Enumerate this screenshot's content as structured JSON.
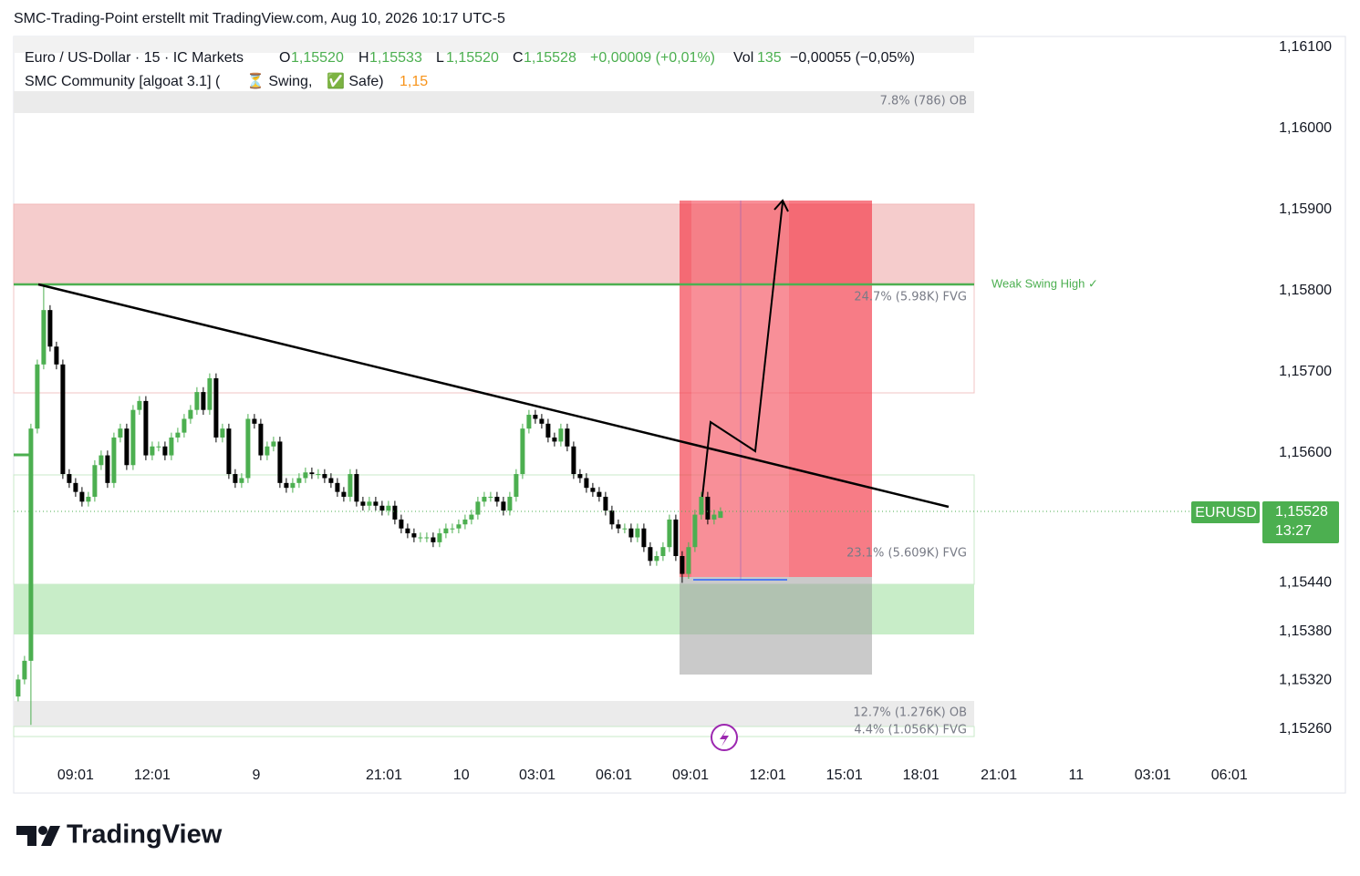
{
  "header": "SMC-Trading-Point erstellt mit TradingView.com, Aug 10, 2026 10:17 UTC-5",
  "logo": "TradingView",
  "chart_data": {
    "type": "candlestick",
    "legend": {
      "symbol": "Euro / US-Dollar · 15 · IC Markets",
      "o_label": "O",
      "o": "1,15520",
      "h_label": "H",
      "h": "1,15533",
      "l_label": "L",
      "l": "1,15520",
      "c_label": "C",
      "c": "1,15528",
      "change": "+0,00009 (+0,01%)",
      "vol_label": "Vol",
      "vol": "135",
      "change2": "−0,00055 (−0,05%)"
    },
    "indicator": {
      "name": "SMC Community [algoat 3.1] (",
      "swing": "⏳ Swing,",
      "safe": "✅ Safe)",
      "value": "1,15"
    },
    "zone_labels": [
      "7.8% (786) OB",
      "24.7% (5.98K) FVG",
      "23.1% (5.609K) FVG",
      "12.7% (1.276K) OB",
      "4.4% (1.056K) FVG"
    ],
    "swing_label": "Weak Swing High ✓",
    "price_tag": {
      "symbol": "EURUSD",
      "price": "1,15528",
      "countdown": "13:27"
    },
    "up_color": "#4caf50",
    "down_color": "#000000",
    "open": [
      1.153,
      1.15321,
      1.15344,
      1.1563,
      1.15709,
      1.15776,
      1.15731,
      1.15709,
      1.15574,
      1.15563,
      1.15552,
      1.1554,
      1.15546,
      1.15585,
      1.15597,
      1.15563,
      1.15619,
      1.1563,
      1.15585,
      1.15653,
      1.15664,
      1.15597,
      1.15608,
      1.15608,
      1.15597,
      1.15619,
      1.15625,
      1.15642,
      1.15653,
      1.15675,
      1.15653,
      1.15692,
      1.15619,
      1.1563,
      1.15574,
      1.15563,
      1.15569,
      1.15642,
      1.15636,
      1.15597,
      1.15608,
      1.15614,
      1.15563,
      1.15557,
      1.15563,
      1.15569,
      1.15576,
      1.15574,
      1.15574,
      1.15569,
      1.15563,
      1.15552,
      1.15546,
      1.15574,
      1.1554,
      1.15535,
      1.1554,
      1.15535,
      1.15529,
      1.15535,
      1.15518,
      1.15507,
      1.15501,
      1.15496,
      1.15496,
      1.15496,
      1.1549,
      1.15501,
      1.15507,
      1.15507,
      1.15512,
      1.15518,
      1.15524,
      1.1554,
      1.15546,
      1.15546,
      1.1554,
      1.15529,
      1.15546,
      1.15574,
      1.1563,
      1.15647,
      1.15642,
      1.15636,
      1.15619,
      1.15614,
      1.1563,
      1.15608,
      1.15574,
      1.15569,
      1.15557,
      1.15552,
      1.15546,
      1.15529,
      1.15512,
      1.15507,
      1.15507,
      1.15496,
      1.15507,
      1.15484,
      1.15467,
      1.15473,
      1.15484,
      1.15518,
      1.15473,
      1.15451,
      1.15484,
      1.15524,
      1.15546,
      1.15518,
      1.1552
    ],
    "high": [
      1.15327,
      1.1535,
      1.15636,
      1.15715,
      1.15808,
      1.15782,
      1.15737,
      1.15715,
      1.1558,
      1.15569,
      1.15558,
      1.15552,
      1.15591,
      1.15603,
      1.15603,
      1.15625,
      1.15636,
      1.15636,
      1.15659,
      1.1567,
      1.1567,
      1.15614,
      1.15614,
      1.15614,
      1.15625,
      1.15631,
      1.15648,
      1.15659,
      1.15681,
      1.15681,
      1.15698,
      1.15698,
      1.15636,
      1.15636,
      1.1558,
      1.15575,
      1.15648,
      1.15648,
      1.15642,
      1.15614,
      1.1562,
      1.1562,
      1.15569,
      1.15569,
      1.15575,
      1.15582,
      1.15582,
      1.1558,
      1.1558,
      1.15575,
      1.15569,
      1.15558,
      1.1558,
      1.1558,
      1.15546,
      1.15546,
      1.15546,
      1.15541,
      1.15541,
      1.15541,
      1.15524,
      1.15513,
      1.15507,
      1.15502,
      1.15502,
      1.15502,
      1.15507,
      1.15513,
      1.15513,
      1.15518,
      1.15524,
      1.1553,
      1.15546,
      1.15552,
      1.15552,
      1.15552,
      1.15546,
      1.15552,
      1.1558,
      1.15636,
      1.15653,
      1.15653,
      1.15648,
      1.15642,
      1.15625,
      1.15636,
      1.15636,
      1.15614,
      1.1558,
      1.15575,
      1.15563,
      1.15558,
      1.15552,
      1.15535,
      1.15518,
      1.15513,
      1.15513,
      1.15513,
      1.15513,
      1.1549,
      1.15479,
      1.1549,
      1.15524,
      1.15524,
      1.15479,
      1.1549,
      1.1553,
      1.15552,
      1.15552,
      1.1553,
      1.15533
    ],
    "low": [
      1.15294,
      1.15315,
      1.15265,
      1.15624,
      1.15703,
      1.15725,
      1.15703,
      1.15568,
      1.15557,
      1.15546,
      1.15534,
      1.15534,
      1.1554,
      1.15579,
      1.15557,
      1.15557,
      1.15613,
      1.15579,
      1.15579,
      1.15647,
      1.15591,
      1.15591,
      1.15602,
      1.15591,
      1.15591,
      1.15613,
      1.15619,
      1.15636,
      1.15647,
      1.15647,
      1.15647,
      1.15613,
      1.15613,
      1.15568,
      1.15557,
      1.15557,
      1.15563,
      1.1563,
      1.15591,
      1.15591,
      1.15602,
      1.15557,
      1.15551,
      1.15551,
      1.15557,
      1.15563,
      1.15568,
      1.15568,
      1.15563,
      1.15557,
      1.15546,
      1.1554,
      1.1554,
      1.15534,
      1.15529,
      1.15529,
      1.15529,
      1.15523,
      1.15523,
      1.15512,
      1.15501,
      1.15495,
      1.1549,
      1.1549,
      1.1549,
      1.15484,
      1.15484,
      1.15495,
      1.15501,
      1.15501,
      1.15506,
      1.15512,
      1.15518,
      1.15534,
      1.1554,
      1.15534,
      1.15523,
      1.15523,
      1.1554,
      1.15568,
      1.15624,
      1.15636,
      1.1563,
      1.15613,
      1.15608,
      1.15608,
      1.15602,
      1.15568,
      1.15563,
      1.15551,
      1.15546,
      1.1554,
      1.15523,
      1.15506,
      1.15501,
      1.15501,
      1.1549,
      1.1549,
      1.15478,
      1.15461,
      1.15461,
      1.15467,
      1.15478,
      1.15467,
      1.1544,
      1.15445,
      1.15478,
      1.15518,
      1.15512,
      1.15512,
      1.1552
    ],
    "close": [
      1.15321,
      1.15344,
      1.1563,
      1.15709,
      1.15776,
      1.15731,
      1.15709,
      1.15574,
      1.15563,
      1.15552,
      1.1554,
      1.15546,
      1.15585,
      1.15597,
      1.15563,
      1.15619,
      1.1563,
      1.15585,
      1.15653,
      1.15664,
      1.15597,
      1.15608,
      1.15608,
      1.15597,
      1.15619,
      1.15625,
      1.15642,
      1.15653,
      1.15675,
      1.15653,
      1.15692,
      1.15619,
      1.1563,
      1.15574,
      1.15563,
      1.15569,
      1.15642,
      1.15636,
      1.15597,
      1.15608,
      1.15614,
      1.15563,
      1.15557,
      1.15563,
      1.15569,
      1.15576,
      1.15574,
      1.15574,
      1.15569,
      1.15563,
      1.15552,
      1.15546,
      1.15574,
      1.1554,
      1.15535,
      1.1554,
      1.15535,
      1.15529,
      1.15535,
      1.15518,
      1.15507,
      1.15501,
      1.15496,
      1.15496,
      1.15496,
      1.1549,
      1.15501,
      1.15507,
      1.15507,
      1.15512,
      1.15518,
      1.15524,
      1.1554,
      1.15546,
      1.15546,
      1.1554,
      1.15529,
      1.15546,
      1.15574,
      1.1563,
      1.15647,
      1.15642,
      1.15636,
      1.15619,
      1.15614,
      1.1563,
      1.15608,
      1.15574,
      1.15569,
      1.15557,
      1.15552,
      1.15546,
      1.15529,
      1.15512,
      1.15507,
      1.15507,
      1.15496,
      1.15507,
      1.15484,
      1.15467,
      1.15473,
      1.15484,
      1.15518,
      1.15473,
      1.15451,
      1.15484,
      1.15524,
      1.15546,
      1.15518,
      1.15524,
      1.15528
    ],
    "xlim": [
      -0.7,
      194.3
    ],
    "xticks": [
      {
        "value": 9.0,
        "label": "09:01"
      },
      {
        "value": 21.0,
        "label": "12:01"
      },
      {
        "value": 37.3,
        "label": "9"
      },
      {
        "value": 57.3,
        "label": "21:01"
      },
      {
        "value": 69.4,
        "label": "10"
      },
      {
        "value": 81.3,
        "label": "03:01"
      },
      {
        "value": 93.3,
        "label": "06:01"
      },
      {
        "value": 105.3,
        "label": "09:01"
      },
      {
        "value": 117.4,
        "label": "12:01"
      },
      {
        "value": 129.4,
        "label": "15:01"
      },
      {
        "value": 141.4,
        "label": "18:01"
      },
      {
        "value": 153.6,
        "label": "21:01"
      },
      {
        "value": 165.7,
        "label": "11"
      },
      {
        "value": 177.7,
        "label": "03:01"
      },
      {
        "value": 189.7,
        "label": "06:01"
      }
    ],
    "ylim": [
      1.15217,
      1.16113
    ],
    "yticks": [
      {
        "value": 1.161,
        "label": "1,16100"
      },
      {
        "value": 1.16,
        "label": "1,16000"
      },
      {
        "value": 1.159,
        "label": "1,15900"
      },
      {
        "value": 1.158,
        "label": "1,15800"
      },
      {
        "value": 1.157,
        "label": "1,15700"
      },
      {
        "value": 1.156,
        "label": "1,15600"
      },
      {
        "value": 1.1544,
        "label": "1,15440"
      },
      {
        "value": 1.1538,
        "label": "1,15380"
      },
      {
        "value": 1.1532,
        "label": "1,15320"
      },
      {
        "value": 1.1526,
        "label": "1,15260"
      }
    ]
  }
}
